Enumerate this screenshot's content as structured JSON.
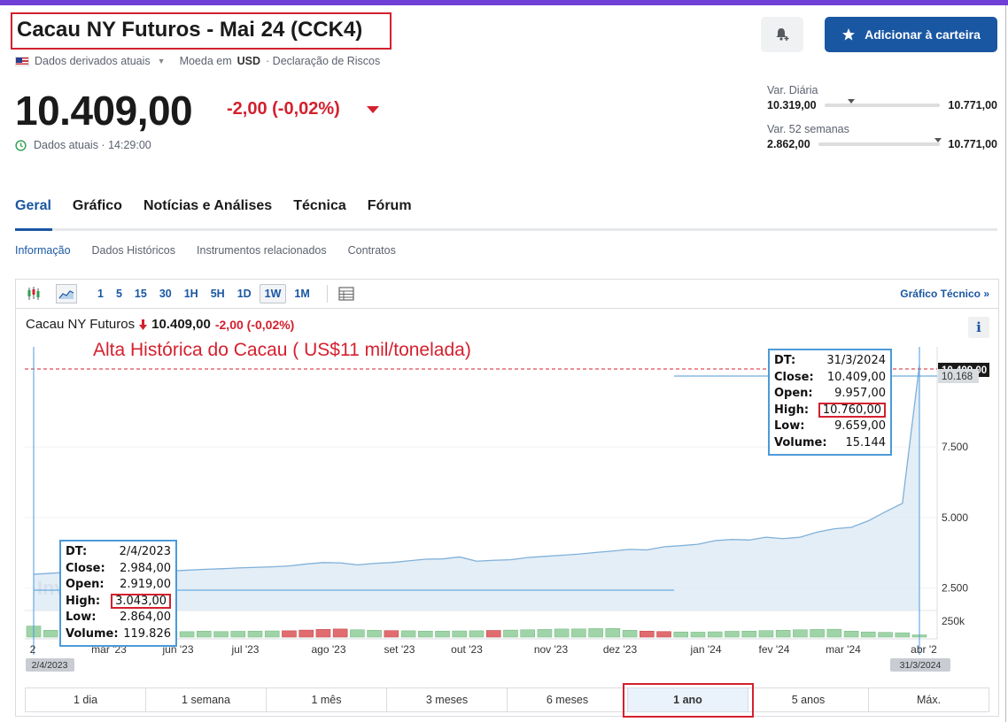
{
  "instrument": {
    "title": "Cacau NY Futuros - Mai 24 (CCK4)",
    "data_source": "Dados derivados atuais",
    "currency_label": "Moeda em",
    "currency": "USD",
    "risk_disclosure": "· Declaração de Riscos",
    "price": "10.409,00",
    "change": "-2,00  (-0,02%)",
    "timestamp": "Dados atuais · 14:29:00"
  },
  "buttons": {
    "add_portfolio": "Adicionar à carteira"
  },
  "ranges": {
    "daily_label": "Var. Diária",
    "daily_low": "10.319,00",
    "daily_high": "10.771,00",
    "daily_position": 0.2,
    "week52_label": "Var. 52 semanas",
    "week52_low": "2.862,00",
    "week52_high": "10.771,00",
    "week52_position": 0.95
  },
  "tabs": [
    "Geral",
    "Gráfico",
    "Notícias e Análises",
    "Técnica",
    "Fórum"
  ],
  "subtabs": [
    "Informação",
    "Dados Históricos",
    "Instrumentos relacionados",
    "Contratos"
  ],
  "toolbar": {
    "intervals": [
      "1",
      "5",
      "15",
      "30",
      "1H",
      "5H",
      "1D",
      "1W",
      "1M"
    ],
    "active_interval": "1W",
    "tech_link": "Gráfico Técnico »"
  },
  "chart_header": {
    "name": "Cacau NY Futuros",
    "price": "10.409,00",
    "change": "-2,00  (-0,02%)"
  },
  "annotation": "Alta Histórica do Cacau ( US$11 mil/tonelada)",
  "tooltip_right": {
    "dt_label": "DT:",
    "dt": "31/3/2024",
    "close_label": "Close:",
    "close": "10.409,00",
    "open_label": "Open:",
    "open": "9.957,00",
    "high_label": "High:",
    "high": "10.760,00",
    "low_label": "Low:",
    "low": "9.659,00",
    "volume_label": "Volume:",
    "volume": "15.144"
  },
  "tooltip_left": {
    "dt_label": "DT:",
    "dt": "2/4/2023",
    "close_label": "Close:",
    "close": "2.984,00",
    "open_label": "Open:",
    "open": "2.919,00",
    "high_label": "High:",
    "high": "3.043,00",
    "low_label": "Low:",
    "low": "2.864,00",
    "volume_label": "Volume:",
    "volume": "119.826"
  },
  "periods": [
    "1 dia",
    "1 semana",
    "1 mês",
    "3 meses",
    "6 meses",
    "1 ano",
    "5 anos",
    "Máx."
  ],
  "active_period": "1 ano",
  "colors": {
    "accent": "#1a57a3",
    "negative": "#d4202e",
    "area": "#dbe8f4",
    "line": "#7fb0d9",
    "vol_up": "#9fd4a8",
    "vol_down": "#e06c70"
  },
  "chart_data": {
    "type": "area",
    "x": [
      "2/4/2023",
      "9/4/2023",
      "16/4/2023",
      "23/4/2023",
      "30/4/2023",
      "7/5/2023",
      "14/5/2023",
      "21/5/2023",
      "28/5/2023",
      "4/6/2023",
      "11/6/2023",
      "18/6/2023",
      "25/6/2023",
      "2/7/2023",
      "9/7/2023",
      "16/7/2023",
      "23/7/2023",
      "30/7/2023",
      "6/8/2023",
      "13/8/2023",
      "20/8/2023",
      "27/8/2023",
      "3/9/2023",
      "10/9/2023",
      "17/9/2023",
      "24/9/2023",
      "1/10/2023",
      "8/10/2023",
      "15/10/2023",
      "22/10/2023",
      "29/10/2023",
      "5/11/2023",
      "12/11/2023",
      "19/11/2023",
      "26/11/2023",
      "3/12/2023",
      "10/12/2023",
      "17/12/2023",
      "24/12/2023",
      "31/12/2023",
      "7/1/2024",
      "14/1/2024",
      "21/1/2024",
      "28/1/2024",
      "4/2/2024",
      "11/2/2024",
      "18/2/2024",
      "25/2/2024",
      "3/3/2024",
      "10/3/2024",
      "17/3/2024",
      "24/3/2024",
      "31/3/2024"
    ],
    "values": [
      2984,
      3020,
      3060,
      3050,
      3000,
      3030,
      3060,
      3080,
      3100,
      3130,
      3160,
      3180,
      3210,
      3230,
      3250,
      3280,
      3350,
      3400,
      3390,
      3320,
      3370,
      3400,
      3460,
      3520,
      3530,
      3600,
      3450,
      3480,
      3500,
      3580,
      3620,
      3660,
      3700,
      3760,
      3810,
      3870,
      3850,
      3960,
      4000,
      4050,
      4180,
      4220,
      4200,
      4300,
      4250,
      4300,
      4480,
      4600,
      4650,
      4880,
      5200,
      5500,
      10409
    ],
    "volume": [
      119826,
      70000,
      60000,
      55000,
      52000,
      58000,
      60000,
      62000,
      58000,
      54000,
      60000,
      55000,
      58000,
      60000,
      62000,
      64000,
      72000,
      80000,
      85000,
      76000,
      70000,
      66000,
      64000,
      60000,
      60000,
      62000,
      64000,
      68000,
      72000,
      76000,
      80000,
      85000,
      86000,
      90000,
      92000,
      70000,
      60000,
      55000,
      50000,
      48000,
      52000,
      58000,
      60000,
      66000,
      70000,
      76000,
      80000,
      82000,
      60000,
      50000,
      45000,
      40000,
      15144
    ],
    "volume_up": [
      true,
      true,
      true,
      true,
      true,
      true,
      true,
      true,
      true,
      true,
      true,
      true,
      true,
      true,
      true,
      false,
      false,
      false,
      false,
      true,
      true,
      false,
      true,
      true,
      true,
      true,
      true,
      false,
      true,
      true,
      true,
      true,
      true,
      true,
      true,
      true,
      false,
      false,
      true,
      true,
      true,
      true,
      true,
      true,
      true,
      true,
      true,
      true,
      true,
      true,
      true,
      true,
      true
    ],
    "y_ticks": [
      "2.500",
      "5.000",
      "7.500"
    ],
    "y_tick_values": [
      2500,
      5000,
      7500
    ],
    "ylim": [
      1700,
      10800
    ],
    "vol_tick": "250k",
    "x_ticks": [
      "2",
      "mar '23",
      "jun '23",
      "jul '23",
      "ago '23",
      "set '23",
      "out '23",
      "nov '23",
      "dez '23",
      "jan '24",
      "fev '24",
      "mar '24",
      "abr '2"
    ],
    "last_price_label": "10.409,00",
    "crosshair_label": "10.168",
    "range_start_label": "2/4/2023",
    "range_end_label": "31/3/2024",
    "watermark": "Inv"
  }
}
